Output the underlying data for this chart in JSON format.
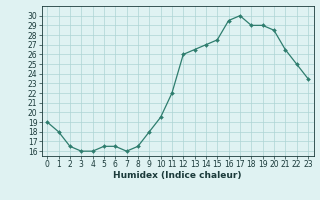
{
  "x": [
    0,
    1,
    2,
    3,
    4,
    5,
    6,
    7,
    8,
    9,
    10,
    11,
    12,
    13,
    14,
    15,
    16,
    17,
    18,
    19,
    20,
    21,
    22,
    23
  ],
  "y": [
    19,
    18,
    16.5,
    16,
    16,
    16.5,
    16.5,
    16,
    16.5,
    18,
    19.5,
    22,
    26,
    26.5,
    27,
    27.5,
    29.5,
    30,
    29,
    29,
    28.5,
    26.5,
    25,
    23.5
  ],
  "xlabel": "Humidex (Indice chaleur)",
  "ylim": [
    15.5,
    31
  ],
  "xlim": [
    -0.5,
    23.5
  ],
  "yticks": [
    16,
    17,
    18,
    19,
    20,
    21,
    22,
    23,
    24,
    25,
    26,
    27,
    28,
    29,
    30
  ],
  "xticks": [
    0,
    1,
    2,
    3,
    4,
    5,
    6,
    7,
    8,
    9,
    10,
    11,
    12,
    13,
    14,
    15,
    16,
    17,
    18,
    19,
    20,
    21,
    22,
    23
  ],
  "line_color": "#2e7d6e",
  "marker_color": "#2e7d6e",
  "bg_color": "#dff2f2",
  "grid_color": "#aed4d4",
  "label_color": "#1a3a3a",
  "tick_fontsize": 5.5,
  "xlabel_fontsize": 6.5
}
